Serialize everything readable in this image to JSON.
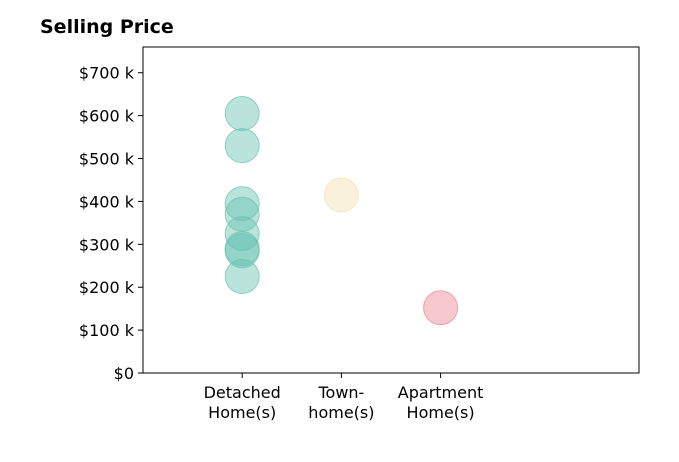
{
  "chart_data": {
    "type": "scatter",
    "title": "Selling Price",
    "xlabel": "",
    "ylabel": "",
    "categories": [
      {
        "lines": [
          "Detached",
          "Home(s)"
        ]
      },
      {
        "lines": [
          "Town-",
          "home(s)"
        ]
      },
      {
        "lines": [
          "Apartment",
          "Home(s)"
        ]
      }
    ],
    "y_ticks": [
      {
        "value": 0,
        "label": "$0"
      },
      {
        "value": 100000,
        "label": "$100 k"
      },
      {
        "value": 200000,
        "label": "$200 k"
      },
      {
        "value": 300000,
        "label": "$300 k"
      },
      {
        "value": 400000,
        "label": "$400 k"
      },
      {
        "value": 500000,
        "label": "$500 k"
      },
      {
        "value": 600000,
        "label": "$600 k"
      },
      {
        "value": 700000,
        "label": "$700 k"
      }
    ],
    "ylim": [
      0,
      760000
    ],
    "xlim": [
      -1,
      4
    ],
    "grid": false,
    "series": [
      {
        "category_index": 0,
        "color": "#66c2b1",
        "values": [
          605000,
          530000,
          395000,
          370000,
          325000,
          290000,
          285000,
          225000
        ]
      },
      {
        "category_index": 1,
        "color": "#f3dfb3",
        "values": [
          415000
        ]
      },
      {
        "category_index": 2,
        "color": "#ee8590",
        "values": [
          152000
        ]
      }
    ],
    "marker_opacity": 0.45
  }
}
